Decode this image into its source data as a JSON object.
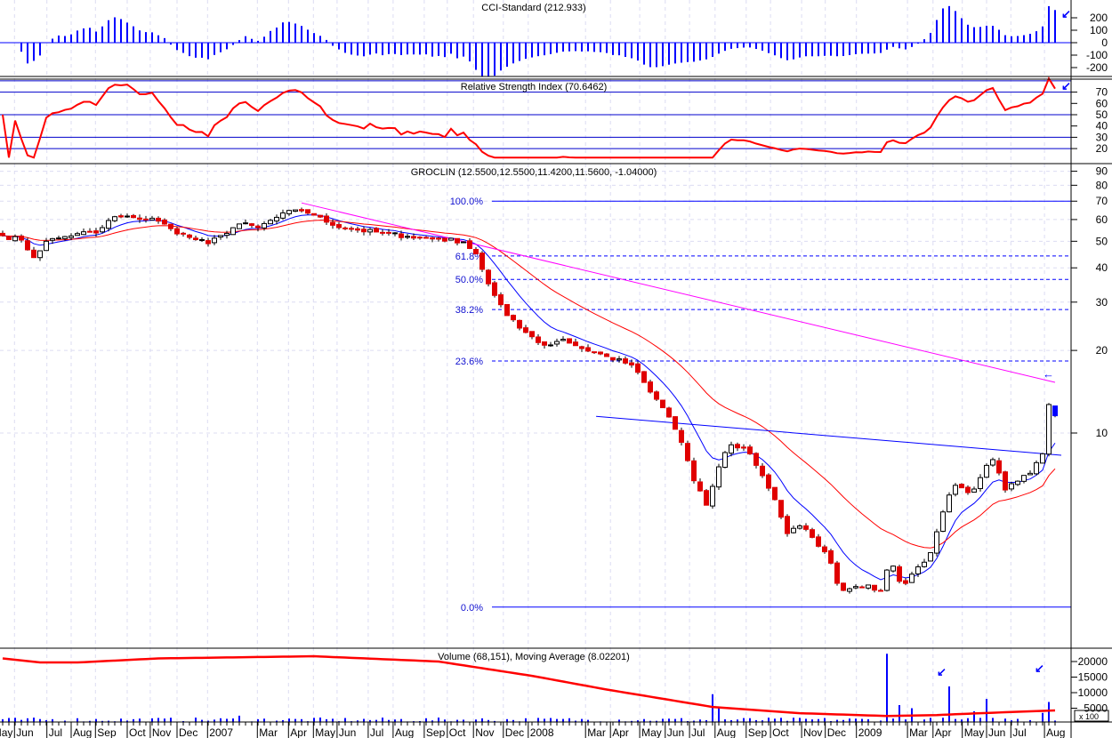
{
  "chart_data": {
    "type": "candlestick",
    "symbol": "GROCLIN",
    "colors": {
      "up": "#ffffff",
      "down": "#e00000",
      "last": "#0000ff",
      "ma_fast": "#0000ff",
      "ma_slow": "#ff0000",
      "rsi": "#ff0000",
      "cci": "#0000ff",
      "volume": "#0000ff",
      "volume_ma": "#ff0000",
      "trend_upper": "#ff00ff",
      "trend_lower": "#0000ff",
      "fib": "#0000ff"
    },
    "panels": {
      "cci": {
        "title": "CCI-Standard (212.933)",
        "ticks": [
          "200",
          "100",
          "0",
          "-100",
          "-200"
        ],
        "tick_values": [
          200,
          100,
          0,
          -100,
          -200
        ]
      },
      "rsi": {
        "title": "Relative Strength Index (70.6462)",
        "ticks": [
          "70",
          "60",
          "50",
          "40",
          "30",
          "20"
        ],
        "tick_values": [
          70,
          60,
          50,
          40,
          30,
          20
        ],
        "levels": [
          80,
          70,
          50,
          30,
          20
        ]
      },
      "price": {
        "title": "GROCLIN (12.5500,12.5500,11.4200,11.5600, -1.04000)",
        "ticks": [
          "90",
          "80",
          "70",
          "60",
          "50",
          "40",
          "30",
          "20",
          "10"
        ],
        "tick_values": [
          90,
          80,
          70,
          60,
          50,
          40,
          30,
          20,
          10
        ],
        "scale": "log"
      },
      "volume": {
        "title": "Volume (68,151), Moving Average (8.02201)",
        "ticks": [
          "20000",
          "15000",
          "10000",
          "5000"
        ],
        "tick_values": [
          20000,
          15000,
          10000,
          5000
        ],
        "unit_label": "x 100"
      }
    },
    "last_bar": {
      "open": 12.55,
      "high": 12.55,
      "low": 11.42,
      "close": 11.56,
      "change": -1.04
    },
    "weeks": 170,
    "price_anchors": [
      [
        0,
        52.4
      ],
      [
        3,
        50.5
      ],
      [
        5,
        43.6
      ],
      [
        7,
        50
      ],
      [
        10,
        52
      ],
      [
        12.4,
        53.6
      ],
      [
        15.3,
        53.6
      ],
      [
        17.4,
        61
      ],
      [
        21,
        61
      ],
      [
        24.6,
        60
      ],
      [
        26.7,
        56
      ],
      [
        29.6,
        52
      ],
      [
        33,
        49
      ],
      [
        35.3,
        53
      ],
      [
        38.1,
        58
      ],
      [
        41,
        56
      ],
      [
        43.9,
        61
      ],
      [
        47.4,
        65.6
      ],
      [
        49.6,
        63
      ],
      [
        52.4,
        58
      ],
      [
        56.7,
        55
      ],
      [
        61,
        53.6
      ],
      [
        65.3,
        52
      ],
      [
        69.6,
        51
      ],
      [
        73.9,
        50
      ],
      [
        76,
        45
      ],
      [
        77.4,
        37.5
      ],
      [
        78.9,
        32
      ],
      [
        81,
        26.8
      ],
      [
        83.1,
        24
      ],
      [
        85.3,
        22.2
      ],
      [
        87.4,
        20.6
      ],
      [
        89.6,
        22.2
      ],
      [
        92.4,
        20.6
      ],
      [
        96.7,
        19.1
      ],
      [
        101,
        17.7
      ],
      [
        103.9,
        14.2
      ],
      [
        106.7,
        11.8
      ],
      [
        108.9,
        9.4
      ],
      [
        111,
        6.7
      ],
      [
        113.1,
        5.4
      ],
      [
        114.6,
        7.2
      ],
      [
        116.7,
        9.1
      ],
      [
        119.6,
        8.7
      ],
      [
        121.7,
        7.2
      ],
      [
        123.9,
        5.8
      ],
      [
        126,
        4.3
      ],
      [
        128.1,
        4.6
      ],
      [
        130.3,
        4.1
      ],
      [
        132.4,
        3.6
      ],
      [
        134.6,
        2.65
      ],
      [
        136.7,
        2.75
      ],
      [
        138.9,
        2.8
      ],
      [
        141,
        2.65
      ],
      [
        142.4,
        3.4
      ],
      [
        144.6,
        2.75
      ],
      [
        146.7,
        3.2
      ],
      [
        148.9,
        3.6
      ],
      [
        150.3,
        4.6
      ],
      [
        151.7,
        5.8
      ],
      [
        153.1,
        6.5
      ],
      [
        155.3,
        6.0
      ],
      [
        156.7,
        6.7
      ],
      [
        158.9,
        8.1
      ],
      [
        161,
        6.2
      ],
      [
        163.1,
        6.7
      ],
      [
        165.3,
        7.2
      ],
      [
        167,
        8.4
      ],
      [
        168,
        12.7
      ],
      [
        169,
        11.56
      ]
    ],
    "fibonacci": [
      {
        "label": "100.0%",
        "price": 70,
        "dashed": false
      },
      {
        "label": "61.8%",
        "price": 44.2,
        "dashed": true
      },
      {
        "label": "50.0%",
        "price": 36.3,
        "dashed": true
      },
      {
        "label": "38.2%",
        "price": 28.2,
        "dashed": true
      },
      {
        "label": "23.6%",
        "price": 18.3,
        "dashed": true
      },
      {
        "label": "0.0%",
        "price": 2.32,
        "dashed": false
      }
    ],
    "trendlines": [
      {
        "name": "upper",
        "from": [
          48,
          69
        ],
        "to": [
          169,
          15.3
        ]
      },
      {
        "name": "lower",
        "from": [
          95.3,
          11.5
        ],
        "to": [
          170,
          8.3
        ]
      }
    ],
    "volume_spikes": [
      [
        38,
        2600
      ],
      [
        114,
        9500
      ],
      [
        115,
        5000
      ],
      [
        142,
        22500
      ],
      [
        144,
        6000
      ],
      [
        146,
        5000
      ],
      [
        152,
        12000
      ],
      [
        156,
        4000
      ],
      [
        158,
        8000
      ],
      [
        167,
        3500
      ],
      [
        168,
        7000
      ]
    ],
    "volume_ma_anchors": [
      [
        0,
        21000
      ],
      [
        6,
        19700
      ],
      [
        12,
        19700
      ],
      [
        25,
        21000
      ],
      [
        50,
        21700
      ],
      [
        70,
        20000
      ],
      [
        85,
        15400
      ],
      [
        97,
        11000
      ],
      [
        114,
        5400
      ],
      [
        128,
        3400
      ],
      [
        142,
        2500
      ],
      [
        150,
        2800
      ],
      [
        157,
        3400
      ],
      [
        169,
        4300
      ]
    ],
    "x_labels": [
      {
        "label": "May",
        "week": -1.9
      },
      {
        "label": "Jun",
        "week": 1.9
      },
      {
        "label": "Jul",
        "week": 7.1
      },
      {
        "label": "Aug",
        "week": 11
      },
      {
        "label": "Sep",
        "week": 14.9
      },
      {
        "label": "Oct",
        "week": 20
      },
      {
        "label": "Nov",
        "week": 23.7
      },
      {
        "label": "Dec",
        "week": 28
      },
      {
        "label": "2007",
        "week": 32.9
      },
      {
        "label": "Mar",
        "week": 40.9
      },
      {
        "label": "Apr",
        "week": 45.9
      },
      {
        "label": "May",
        "week": 49.9
      },
      {
        "label": "Jun",
        "week": 53.7
      },
      {
        "label": "Jul",
        "week": 58.7
      },
      {
        "label": "Aug",
        "week": 62.7
      },
      {
        "label": "Sep",
        "week": 67.7
      },
      {
        "label": "Oct",
        "week": 71.4
      },
      {
        "label": "Nov",
        "week": 75.6
      },
      {
        "label": "Dec",
        "week": 80.4
      },
      {
        "label": "2008",
        "week": 84.4
      },
      {
        "label": "Mar",
        "week": 93.6
      },
      {
        "label": "Apr",
        "week": 97.6
      },
      {
        "label": "May",
        "week": 102.3
      },
      {
        "label": "Jun",
        "week": 106.4
      },
      {
        "label": "Jul",
        "week": 110.3
      },
      {
        "label": "Aug",
        "week": 114.4
      },
      {
        "label": "Sep",
        "week": 119.4
      },
      {
        "label": "Oct",
        "week": 123.3
      },
      {
        "label": "Nov",
        "week": 128.3
      },
      {
        "label": "Dec",
        "week": 132.1
      },
      {
        "label": "2009",
        "week": 137.1
      },
      {
        "label": "Mar",
        "week": 145.3
      },
      {
        "label": "Apr",
        "week": 149.4
      },
      {
        "label": "May",
        "week": 154.1
      },
      {
        "label": "Jun",
        "week": 158
      },
      {
        "label": "Jul",
        "week": 161.9
      },
      {
        "label": "Aug",
        "week": 167.3
      }
    ]
  }
}
